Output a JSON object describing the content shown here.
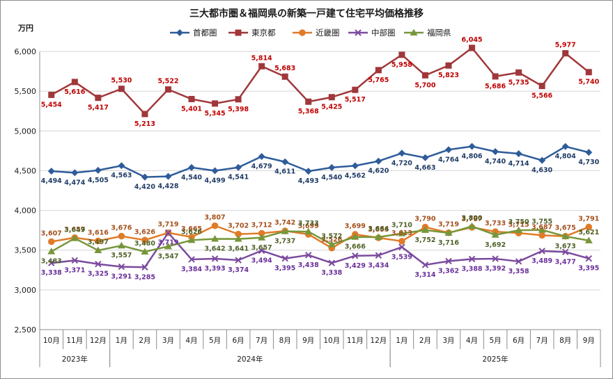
{
  "chart_data": {
    "type": "line",
    "title": "三大都市圏＆福岡県の新築一戸建て住宅平均価格推移",
    "ylabel": "万円",
    "ylim": [
      2500,
      6000
    ],
    "yticks": [
      "2,500",
      "3,000",
      "3,500",
      "4,000",
      "4,500",
      "5,000",
      "5,500",
      "6,000"
    ],
    "ytick_values": [
      2500,
      3000,
      3500,
      4000,
      4500,
      5000,
      5500,
      6000
    ],
    "categories": [
      "10月",
      "11月",
      "12月",
      "1月",
      "2月",
      "3月",
      "4月",
      "5月",
      "6月",
      "7月",
      "8月",
      "9月",
      "10月",
      "11月",
      "12月",
      "1月",
      "2月",
      "3月",
      "4月",
      "5月",
      "6月",
      "7月",
      "8月",
      "9月"
    ],
    "years": [
      {
        "label": "2023年",
        "start": 0,
        "end": 2
      },
      {
        "label": "2024年",
        "start": 3,
        "end": 14
      },
      {
        "label": "2025年",
        "start": 15,
        "end": 23
      }
    ],
    "legend_position": "top",
    "series": [
      {
        "name": "首都圏",
        "color": "#2e5c9a",
        "marker": "diamond",
        "label_pos": "below",
        "label_color": "#1f3b66",
        "values": [
          4494,
          4474,
          4505,
          4563,
          4420,
          4428,
          4540,
          4499,
          4541,
          4679,
          4611,
          4493,
          4540,
          4562,
          4620,
          4720,
          4663,
          4764,
          4806,
          4740,
          4714,
          4630,
          4804,
          4730
        ],
        "labels": [
          "4,494",
          "4,474",
          "4,505",
          "4,563",
          "4,420",
          "4,428",
          "4,540",
          "4,499",
          "4,541",
          "4,679",
          "4,611",
          "4,493",
          "4,540",
          "4,562",
          "4,620",
          "4,720",
          "4,663",
          "4,764",
          "4,806",
          "4,740",
          "4,714",
          "4,630",
          "4,804",
          "4,730"
        ]
      },
      {
        "name": "東京都",
        "color": "#a0373a",
        "marker": "square",
        "label_color": "#c00000",
        "label_pos_list": [
          "below",
          "below",
          "below",
          "above",
          "below",
          "above",
          "below",
          "below",
          "below",
          "above",
          "above",
          "below",
          "below",
          "below",
          "below",
          "below",
          "below",
          "below",
          "above",
          "below",
          "below",
          "below",
          "above",
          "below"
        ],
        "values": [
          5454,
          5616,
          5417,
          5530,
          5213,
          5522,
          5401,
          5345,
          5398,
          5814,
          5683,
          5368,
          5425,
          5517,
          5765,
          5958,
          5700,
          5823,
          6045,
          5686,
          5735,
          5566,
          5977,
          5740
        ],
        "labels": [
          "5,454",
          "5,616",
          "5,417",
          "5,530",
          "5,213",
          "5,522",
          "5,401",
          "5,345",
          "5,398",
          "5,814",
          "5,683",
          "5,368",
          "5,425",
          "5,517",
          "5,765",
          "5,958",
          "5,700",
          "5,823",
          "6,045",
          "5,686",
          "5,735",
          "5,566",
          "5,977",
          "5,740"
        ]
      },
      {
        "name": "近畿圏",
        "color": "#e07b28",
        "marker": "circle",
        "label_pos": "above",
        "label_color": "#a5501b",
        "values": [
          3607,
          3657,
          3616,
          3676,
          3626,
          3719,
          3665,
          3807,
          3702,
          3712,
          3742,
          3699,
          3526,
          3699,
          3655,
          3613,
          3790,
          3719,
          3787,
          3733,
          3715,
          3687,
          3675,
          3791
        ],
        "labels": [
          "3,607",
          "3,657",
          "3,616",
          "3,676",
          "3,626",
          "3,719",
          "3,665",
          "3,807",
          "3,702",
          "3,712",
          "3,742",
          "3,699",
          "3,526",
          "3,699",
          "3,655",
          "3,613",
          "3,790",
          "3,719",
          "3,787",
          "3,733",
          "3,715",
          "3,687",
          "3,675",
          "3,791"
        ]
      },
      {
        "name": "中部圏",
        "color": "#7b4a9e",
        "marker": "x",
        "label_pos": "below",
        "label_color": "#6a2f9a",
        "values": [
          3338,
          3371,
          3325,
          3291,
          3285,
          3719,
          3384,
          3393,
          3374,
          3494,
          3395,
          3438,
          3338,
          3429,
          3434,
          3539,
          3314,
          3362,
          3388,
          3392,
          3358,
          3489,
          3477,
          3395
        ],
        "labels": [
          "3,338",
          "3,371",
          "3,325",
          "3,291",
          "3,285",
          "3,719",
          "3,384",
          "3,393",
          "3,374",
          "3,494",
          "3,395",
          "3,438",
          "3,338",
          "3,429",
          "3,434",
          "3,539",
          "3,314",
          "3,362",
          "3,388",
          "3,392",
          "3,358",
          "3,489",
          "3,477",
          "3,395"
        ]
      },
      {
        "name": "福岡県",
        "color": "#77963a",
        "marker": "triangle",
        "label_color": "#4f6228",
        "label_pos_list": [
          "below",
          "above",
          "above",
          "below",
          "above",
          "below",
          "above",
          "below",
          "below",
          "below",
          "below",
          "above",
          "above",
          "below",
          "above",
          "above",
          "below",
          "below",
          "above",
          "below",
          "above",
          "above",
          "below",
          "above"
        ],
        "values": [
          3483,
          3649,
          3497,
          3557,
          3480,
          3547,
          3626,
          3642,
          3641,
          3657,
          3737,
          3733,
          3572,
          3666,
          3664,
          3710,
          3752,
          3716,
          3800,
          3692,
          3750,
          3755,
          3673,
          3621
        ],
        "labels": [
          "3,483",
          "3,649",
          "3,497",
          "3,557",
          "3,480",
          "3,547",
          "3,626",
          "3,642",
          "3,641",
          "3,657",
          "3,737",
          "3,733",
          "3,572",
          "3,666",
          "3,664",
          "3,710",
          "3,752",
          "3,716",
          "3,800",
          "3,692",
          "3,750",
          "3,755",
          "3,673",
          "3,621"
        ]
      }
    ]
  }
}
